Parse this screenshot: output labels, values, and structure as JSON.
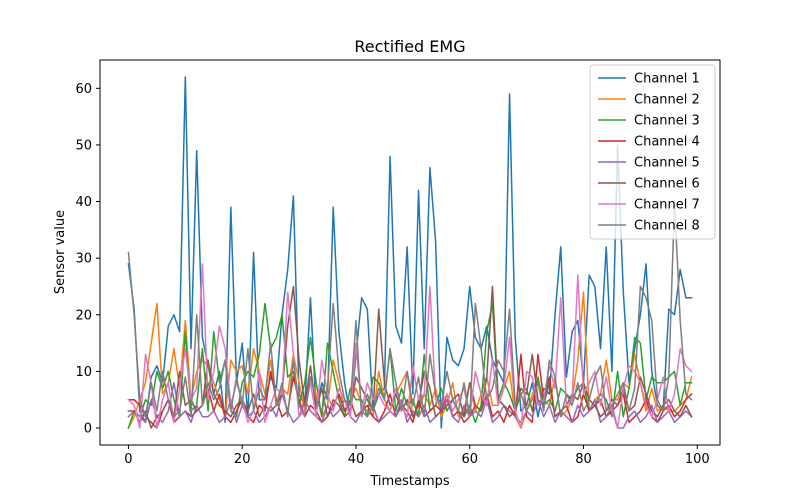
{
  "chart_data": {
    "type": "line",
    "title": "Rectified EMG",
    "xlabel": "Timestamps",
    "ylabel": "Sensor value",
    "xlim": [
      -5,
      104
    ],
    "ylim": [
      -3,
      65
    ],
    "xticks": [
      0,
      20,
      40,
      60,
      80,
      100
    ],
    "yticks": [
      0,
      10,
      20,
      30,
      40,
      50,
      60
    ],
    "grid": false,
    "legend_position": "top-right",
    "series": [
      {
        "name": "Channel 1",
        "color": "#1f77b4",
        "values": [
          29,
          21,
          3,
          1,
          9,
          11,
          8,
          18,
          20,
          17,
          62,
          14,
          49,
          16,
          11,
          6,
          10,
          1,
          39,
          8,
          15,
          2,
          31,
          5,
          5,
          9,
          7,
          20,
          28,
          41,
          6,
          4,
          23,
          3,
          8,
          5,
          39,
          17,
          8,
          2,
          13,
          23,
          21,
          3,
          6,
          7,
          48,
          18,
          15,
          32,
          6,
          42,
          14,
          46,
          33,
          0,
          16,
          12,
          11,
          14,
          25,
          16,
          14,
          18,
          12,
          10,
          8,
          59,
          16,
          3,
          4,
          8,
          2,
          7,
          6,
          20,
          32,
          9,
          17,
          19,
          8,
          27,
          25,
          14,
          32,
          10,
          50,
          24,
          8,
          14,
          20,
          29,
          10,
          4,
          3,
          21,
          20,
          28,
          23,
          23
        ]
      },
      {
        "name": "Channel 2",
        "color": "#ff7f0e",
        "values": [
          0,
          2,
          5,
          8,
          15,
          22,
          6,
          8,
          14,
          7,
          19,
          5,
          10,
          12,
          11,
          8,
          5,
          2,
          12,
          10,
          11,
          6,
          14,
          10,
          6,
          12,
          4,
          7,
          6,
          13,
          8,
          3,
          9,
          6,
          2,
          4,
          12,
          8,
          3,
          5,
          7,
          4,
          3,
          2,
          10,
          5,
          3,
          6,
          8,
          10,
          2,
          3,
          6,
          4,
          7,
          2,
          4,
          8,
          2,
          3,
          8,
          3,
          6,
          9,
          4,
          4,
          7,
          10,
          2,
          0,
          3,
          6,
          8,
          5,
          4,
          9,
          2,
          3,
          5,
          12,
          24,
          3,
          5,
          6,
          12,
          5,
          5,
          8,
          7,
          13,
          8,
          3,
          7,
          3,
          4,
          3,
          3,
          4,
          5,
          9
        ]
      },
      {
        "name": "Channel 3",
        "color": "#2ca02c",
        "values": [
          0,
          3,
          2,
          5,
          4,
          10,
          7,
          10,
          5,
          2,
          17,
          3,
          4,
          14,
          3,
          17,
          8,
          12,
          3,
          2,
          8,
          10,
          9,
          13,
          22,
          14,
          16,
          20,
          9,
          10,
          4,
          8,
          16,
          8,
          2,
          15,
          10,
          5,
          2,
          7,
          5,
          5,
          2,
          9,
          8,
          5,
          14,
          3,
          7,
          4,
          5,
          2,
          13,
          3,
          4,
          7,
          3,
          5,
          3,
          2,
          4,
          1,
          4,
          17,
          22,
          5,
          8,
          6,
          3,
          6,
          7,
          3,
          9,
          4,
          5,
          3,
          7,
          6,
          5,
          7,
          8,
          3,
          4,
          6,
          5,
          2,
          10,
          2,
          7,
          16,
          15,
          5,
          9,
          8,
          8,
          9,
          10,
          4,
          8,
          8
        ]
      },
      {
        "name": "Channel 4",
        "color": "#d62728",
        "values": [
          5,
          5,
          4,
          2,
          1,
          0,
          3,
          5,
          1,
          2,
          3,
          2,
          3,
          4,
          7,
          3,
          6,
          2,
          1,
          3,
          5,
          2,
          1,
          4,
          3,
          10,
          5,
          2,
          3,
          9,
          5,
          2,
          4,
          3,
          1,
          2,
          4,
          6,
          3,
          5,
          2,
          3,
          4,
          2,
          1,
          3,
          6,
          2,
          4,
          3,
          1,
          5,
          2,
          3,
          4,
          3,
          6,
          2,
          3,
          1,
          2,
          4,
          3,
          6,
          2,
          3,
          1,
          4,
          2,
          13,
          2,
          1,
          13,
          5,
          9,
          2,
          3,
          4,
          1,
          2,
          6,
          3,
          4,
          5,
          2,
          3,
          4,
          6,
          1,
          2,
          3,
          5,
          2,
          1,
          3,
          4,
          2,
          3,
          5,
          6
        ]
      },
      {
        "name": "Channel 5",
        "color": "#9467bd",
        "values": [
          2,
          3,
          2,
          1,
          5,
          2,
          1,
          3,
          8,
          2,
          3,
          1,
          4,
          2,
          2,
          3,
          1,
          2,
          5,
          1,
          4,
          2,
          3,
          1,
          2,
          4,
          2,
          6,
          3,
          1,
          2,
          5,
          3,
          2,
          1,
          4,
          2,
          3,
          5,
          2,
          1,
          3,
          2,
          4,
          1,
          2,
          3,
          2,
          5,
          1,
          3,
          2,
          4,
          1,
          2,
          3,
          5,
          2,
          1,
          4,
          2,
          3,
          2,
          5,
          1,
          2,
          4,
          3,
          2,
          1,
          3,
          2,
          5,
          2,
          4,
          1,
          3,
          2,
          1,
          4,
          2,
          3,
          5,
          1,
          2,
          4,
          0,
          0,
          2,
          3,
          1,
          2,
          4,
          1,
          2,
          3,
          1,
          2,
          3,
          2
        ]
      },
      {
        "name": "Channel 6",
        "color": "#8c564b",
        "values": [
          3,
          3,
          1,
          3,
          0,
          2,
          3,
          5,
          2,
          10,
          4,
          5,
          3,
          4,
          12,
          6,
          4,
          3,
          2,
          4,
          5,
          3,
          6,
          2,
          4,
          3,
          4,
          6,
          18,
          25,
          12,
          4,
          11,
          3,
          7,
          2,
          5,
          4,
          2,
          3,
          9,
          7,
          5,
          3,
          21,
          8,
          4,
          6,
          3,
          5,
          2,
          4,
          10,
          7,
          2,
          3,
          4,
          5,
          6,
          2,
          8,
          4,
          3,
          9,
          25,
          5,
          4,
          2,
          3,
          7,
          6,
          13,
          5,
          4,
          8,
          2,
          3,
          4,
          6,
          5,
          8,
          5,
          4,
          2,
          3,
          5,
          4,
          7,
          3,
          4,
          9,
          6,
          3,
          2,
          4,
          5,
          3,
          2,
          4,
          2
        ]
      },
      {
        "name": "Channel 7",
        "color": "#e377c2",
        "values": [
          5,
          4,
          0,
          13,
          8,
          0,
          5,
          8,
          1,
          7,
          14,
          5,
          7,
          29,
          5,
          10,
          18,
          14,
          4,
          8,
          5,
          1,
          3,
          10,
          1,
          4,
          7,
          6,
          24,
          13,
          2,
          3,
          8,
          2,
          12,
          6,
          3,
          7,
          5,
          2,
          15,
          3,
          8,
          5,
          6,
          4,
          3,
          7,
          4,
          2,
          11,
          5,
          6,
          25,
          5,
          4,
          6,
          3,
          5,
          7,
          2,
          10,
          6,
          4,
          12,
          4,
          7,
          16,
          3,
          0,
          10,
          9,
          4,
          5,
          11,
          7,
          23,
          4,
          5,
          27,
          6,
          8,
          10,
          4,
          9,
          3,
          0,
          7,
          11,
          10,
          8,
          4,
          2,
          5,
          9,
          3,
          6,
          14,
          11,
          10
        ]
      },
      {
        "name": "Channel 8",
        "color": "#7f7f7f",
        "values": [
          31,
          20,
          5,
          2,
          8,
          3,
          10,
          5,
          2,
          3,
          9,
          2,
          20,
          4,
          8,
          5,
          7,
          12,
          3,
          9,
          4,
          14,
          3,
          7,
          5,
          15,
          4,
          8,
          2,
          12,
          4,
          2,
          9,
          5,
          3,
          7,
          22,
          10,
          5,
          4,
          19,
          2,
          6,
          3,
          7,
          5,
          14,
          8,
          3,
          10,
          4,
          9,
          2,
          13,
          6,
          4,
          10,
          5,
          3,
          8,
          2,
          22,
          14,
          5,
          7,
          12,
          10,
          21,
          4,
          6,
          3,
          5,
          8,
          3,
          12,
          9,
          2,
          6,
          4,
          8,
          3,
          5,
          9,
          11,
          3,
          4,
          6,
          8,
          3,
          7,
          25,
          23,
          19,
          5,
          3,
          9,
          40,
          19,
          6,
          5
        ]
      }
    ]
  }
}
